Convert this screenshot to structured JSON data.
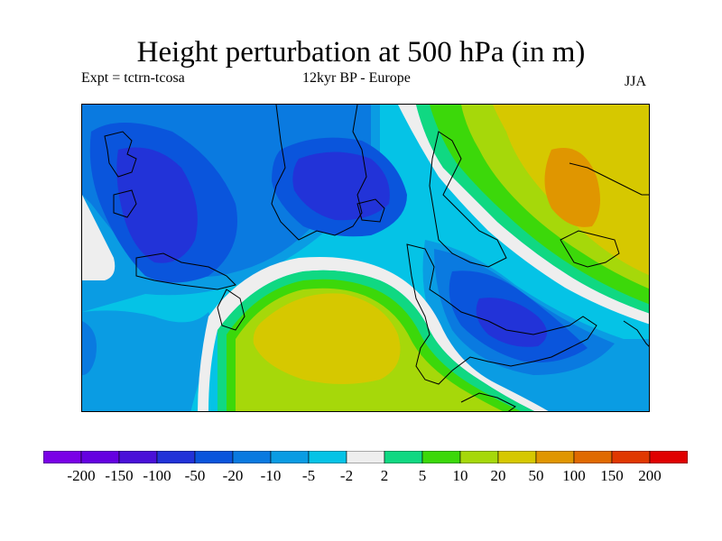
{
  "title": "Height perturbation at 500 hPa (in m)",
  "subtitle_left": "Expt = tctrn-tcosa",
  "subtitle_center": "12kyr BP - Europe",
  "subtitle_right": "JJA",
  "colorbar": {
    "colors": [
      "#7a00e6",
      "#6500e0",
      "#4a10d8",
      "#2233d8",
      "#0a55dc",
      "#0a7ae0",
      "#0a9ce3",
      "#05c3e6",
      "#eeeeee",
      "#10d882",
      "#3cd80a",
      "#a6d80a",
      "#d6c800",
      "#e09600",
      "#e06a00",
      "#e03800",
      "#e00000"
    ],
    "labels": [
      "-200",
      "-150",
      "-100",
      "-50",
      "-20",
      "-10",
      "-5",
      "-2",
      "2",
      "5",
      "10",
      "20",
      "50",
      "100",
      "150",
      "200"
    ]
  },
  "map": {
    "region": "Europe",
    "variable": "500 hPa height perturbation",
    "units": "m"
  }
}
